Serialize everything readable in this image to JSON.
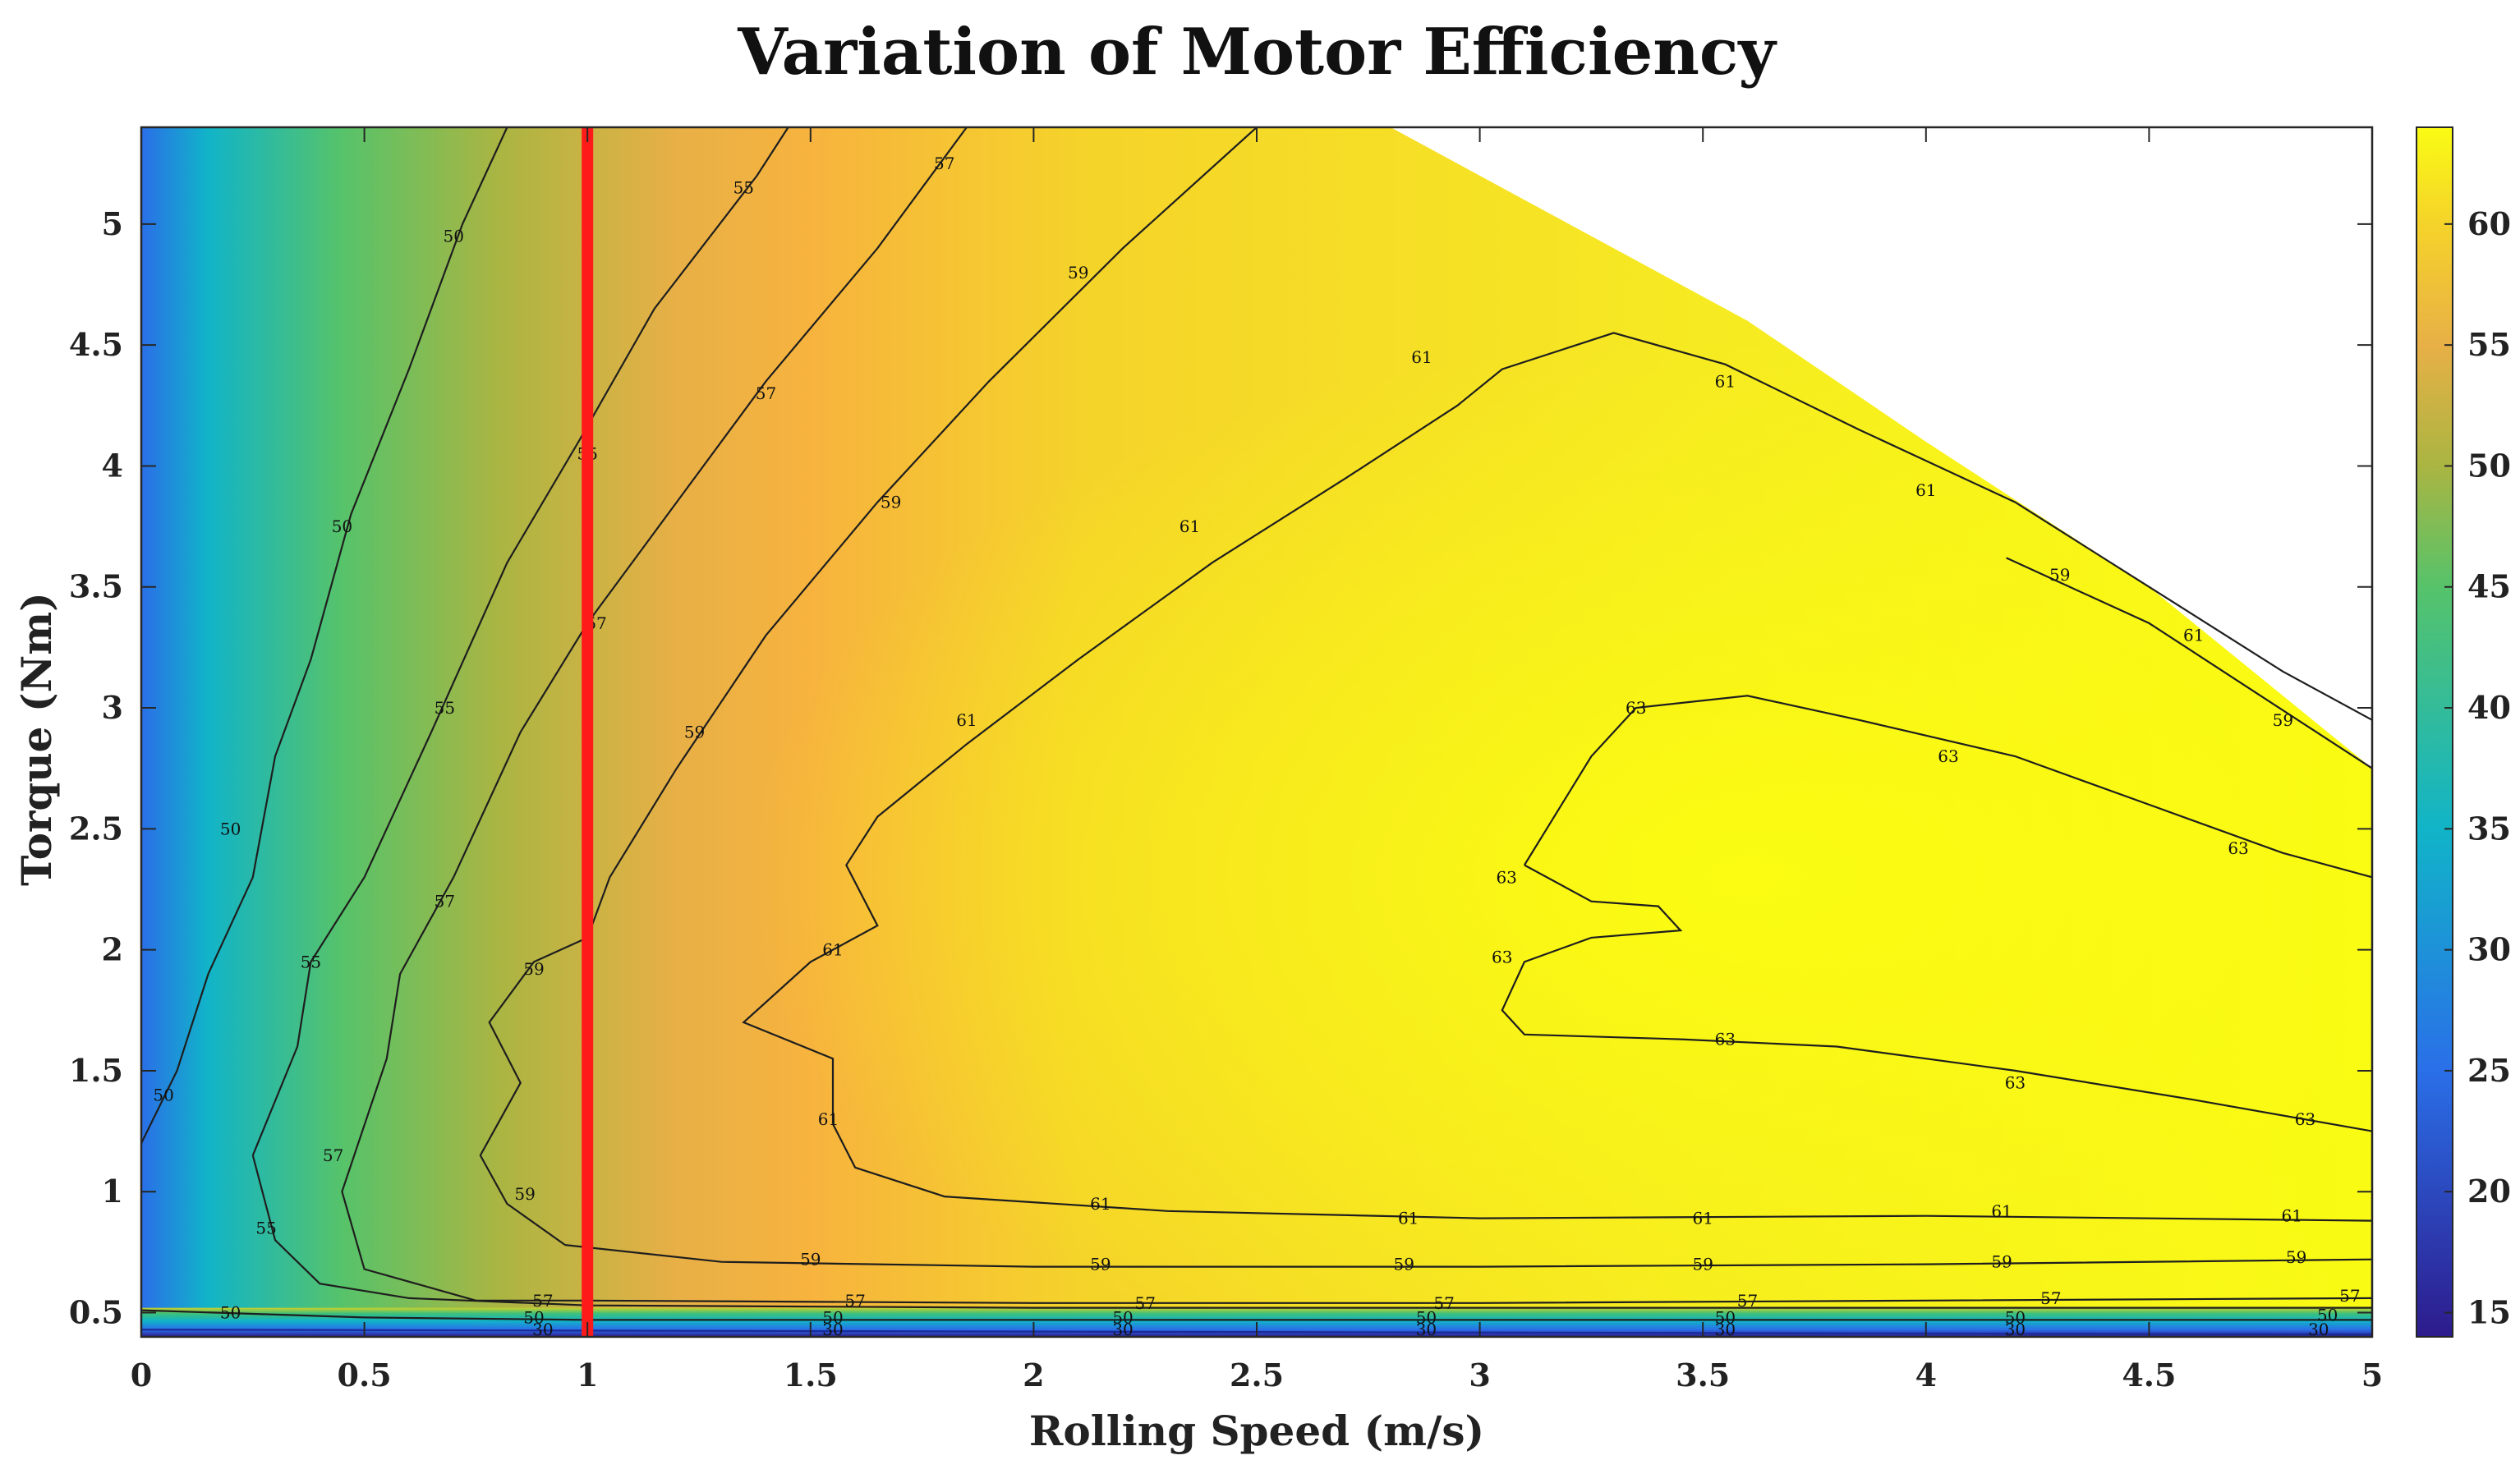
{
  "chart_data": {
    "type": "heatmap",
    "title": "Variation of Motor Efficiency",
    "xlabel": "Rolling Speed  (m/s)",
    "ylabel": "Torque  (Nm)",
    "xlim": [
      0,
      5
    ],
    "ylim": [
      0.4,
      5.4
    ],
    "xticks": [
      "0",
      "0.5",
      "1",
      "1.5",
      "2",
      "2.5",
      "3",
      "3.5",
      "4",
      "4.5",
      "5"
    ],
    "yticks": [
      "0.5",
      "1",
      "1.5",
      "2",
      "2.5",
      "3",
      "3.5",
      "4",
      "4.5",
      "5"
    ],
    "colorbar": {
      "range": [
        14,
        64
      ],
      "ticks": [
        "15",
        "20",
        "25",
        "30",
        "35",
        "40",
        "45",
        "50",
        "55",
        "60"
      ]
    },
    "colors": {
      "c14": "#2d1b8c",
      "c25": "#2a6fe8",
      "c35": "#11b4c8",
      "c45": "#56c36a",
      "c50": "#aab542",
      "c55": "#e8b046",
      "c57": "#f7b33e",
      "c60": "#f5d32a",
      "c64": "#f9fb14",
      "marker": "#ff1a1a"
    },
    "marker_line": {
      "x": 1
    },
    "valid_region_top": [
      [
        0,
        5.4
      ],
      [
        2.8,
        5.4
      ],
      [
        3.15,
        5.05
      ],
      [
        3.6,
        4.6
      ],
      [
        4.0,
        4.1
      ],
      [
        4.5,
        3.5
      ],
      [
        5.0,
        2.75
      ]
    ],
    "contours": [
      {
        "level": "30",
        "points": [
          [
            0,
            0.43
          ],
          [
            5,
            0.41
          ]
        ],
        "labels": [
          [
            0.9,
            0.43
          ],
          [
            1.55,
            0.43
          ],
          [
            2.2,
            0.43
          ],
          [
            2.88,
            0.43
          ],
          [
            3.55,
            0.43
          ],
          [
            4.2,
            0.43
          ],
          [
            4.88,
            0.43
          ]
        ]
      },
      {
        "level": "50",
        "points": [
          [
            0,
            0.51
          ],
          [
            0.5,
            0.48
          ],
          [
            1,
            0.47
          ],
          [
            5,
            0.47
          ]
        ],
        "labels": [
          [
            0.2,
            0.5
          ],
          [
            0.88,
            0.48
          ],
          [
            1.55,
            0.48
          ],
          [
            2.2,
            0.48
          ],
          [
            2.88,
            0.48
          ],
          [
            3.55,
            0.48
          ],
          [
            4.2,
            0.48
          ],
          [
            4.9,
            0.49
          ]
        ]
      },
      {
        "level": "50",
        "points": [
          [
            0,
            1.2
          ],
          [
            0.08,
            1.5
          ],
          [
            0.15,
            1.9
          ],
          [
            0.25,
            2.3
          ],
          [
            0.3,
            2.8
          ],
          [
            0.38,
            3.2
          ],
          [
            0.47,
            3.8
          ],
          [
            0.6,
            4.4
          ],
          [
            0.72,
            5.0
          ],
          [
            0.82,
            5.4
          ]
        ],
        "labels": [
          [
            0.05,
            1.4
          ],
          [
            0.2,
            2.5
          ],
          [
            0.45,
            3.75
          ],
          [
            0.7,
            4.95
          ]
        ]
      },
      {
        "level": "55",
        "points": [
          [
            0.25,
            1.15
          ],
          [
            0.3,
            0.8
          ],
          [
            0.4,
            0.62
          ],
          [
            0.6,
            0.56
          ],
          [
            1,
            0.53
          ],
          [
            2,
            0.52
          ],
          [
            3,
            0.52
          ],
          [
            5,
            0.52
          ]
        ],
        "labels": [
          [
            0.28,
            0.85
          ]
        ]
      },
      {
        "level": "55",
        "points": [
          [
            0.25,
            1.15
          ],
          [
            0.35,
            1.6
          ],
          [
            0.38,
            1.95
          ],
          [
            0.5,
            2.3
          ],
          [
            0.65,
            2.9
          ],
          [
            0.82,
            3.6
          ],
          [
            0.98,
            4.1
          ],
          [
            1.15,
            4.65
          ],
          [
            1.38,
            5.2
          ],
          [
            1.45,
            5.4
          ]
        ],
        "labels": [
          [
            0.38,
            1.95
          ],
          [
            0.68,
            3.0
          ],
          [
            1.0,
            4.05
          ],
          [
            1.35,
            5.15
          ]
        ]
      },
      {
        "level": "57",
        "points": [
          [
            0.75,
            0.55
          ],
          [
            0.5,
            0.68
          ],
          [
            0.45,
            1.0
          ],
          [
            0.55,
            1.55
          ],
          [
            0.58,
            1.9
          ],
          [
            0.7,
            2.3
          ],
          [
            0.85,
            2.9
          ],
          [
            1.0,
            3.35
          ],
          [
            1.2,
            3.85
          ],
          [
            1.4,
            4.35
          ],
          [
            1.65,
            4.9
          ],
          [
            1.85,
            5.4
          ]
        ],
        "labels": [
          [
            0.43,
            1.15
          ],
          [
            0.68,
            2.2
          ],
          [
            1.02,
            3.35
          ],
          [
            1.4,
            4.3
          ],
          [
            1.8,
            5.25
          ]
        ]
      },
      {
        "level": "57",
        "points": [
          [
            0.75,
            0.55
          ],
          [
            1,
            0.55
          ],
          [
            2,
            0.54
          ],
          [
            3,
            0.54
          ],
          [
            4,
            0.55
          ],
          [
            5,
            0.56
          ]
        ],
        "labels": [
          [
            0.9,
            0.55
          ],
          [
            1.6,
            0.55
          ],
          [
            2.25,
            0.54
          ],
          [
            2.92,
            0.54
          ],
          [
            3.6,
            0.55
          ],
          [
            4.28,
            0.56
          ],
          [
            4.95,
            0.57
          ]
        ]
      },
      {
        "level": "59",
        "points": [
          [
            0.95,
            0.78
          ],
          [
            0.82,
            0.95
          ],
          [
            0.76,
            1.15
          ],
          [
            0.85,
            1.45
          ],
          [
            0.78,
            1.7
          ],
          [
            0.88,
            1.95
          ],
          [
            1.0,
            2.05
          ],
          [
            1.05,
            2.3
          ],
          [
            1.2,
            2.75
          ],
          [
            1.4,
            3.3
          ],
          [
            1.65,
            3.85
          ],
          [
            1.9,
            4.35
          ],
          [
            2.2,
            4.9
          ],
          [
            2.5,
            5.4
          ]
        ],
        "labels": [
          [
            0.86,
            0.99
          ],
          [
            0.88,
            1.92
          ],
          [
            1.24,
            2.9
          ],
          [
            1.68,
            3.85
          ],
          [
            2.1,
            4.8
          ]
        ]
      },
      {
        "level": "59",
        "points": [
          [
            0.95,
            0.78
          ],
          [
            1.3,
            0.71
          ],
          [
            2,
            0.69
          ],
          [
            3,
            0.69
          ],
          [
            4,
            0.7
          ],
          [
            5,
            0.72
          ]
        ],
        "labels": [
          [
            1.5,
            0.72
          ],
          [
            2.15,
            0.7
          ],
          [
            2.83,
            0.7
          ],
          [
            3.5,
            0.7
          ],
          [
            4.17,
            0.71
          ],
          [
            4.83,
            0.73
          ]
        ]
      },
      {
        "level": "59",
        "points": [
          [
            4.18,
            3.62
          ],
          [
            4.5,
            3.35
          ],
          [
            4.75,
            3.05
          ],
          [
            5,
            2.75
          ]
        ],
        "labels": [
          [
            4.3,
            3.55
          ],
          [
            4.8,
            2.95
          ]
        ]
      },
      {
        "level": "61",
        "points": [
          [
            1.55,
            1.28
          ],
          [
            1.6,
            1.1
          ],
          [
            1.8,
            0.98
          ],
          [
            2.3,
            0.92
          ],
          [
            3,
            0.89
          ],
          [
            4,
            0.9
          ],
          [
            5,
            0.88
          ]
        ],
        "labels": [
          [
            2.15,
            0.95
          ],
          [
            2.84,
            0.89
          ],
          [
            3.5,
            0.89
          ],
          [
            4.17,
            0.92
          ],
          [
            4.82,
            0.9
          ]
        ]
      },
      {
        "level": "61",
        "points": [
          [
            1.55,
            1.28
          ],
          [
            1.55,
            1.55
          ],
          [
            1.35,
            1.7
          ],
          [
            1.5,
            1.95
          ],
          [
            1.65,
            2.1
          ],
          [
            1.58,
            2.35
          ],
          [
            1.65,
            2.55
          ],
          [
            1.85,
            2.85
          ],
          [
            2.1,
            3.2
          ],
          [
            2.4,
            3.6
          ],
          [
            2.7,
            3.95
          ],
          [
            2.95,
            4.25
          ],
          [
            3.05,
            4.4
          ],
          [
            3.3,
            4.55
          ],
          [
            3.55,
            4.42
          ],
          [
            3.85,
            4.15
          ],
          [
            4.2,
            3.85
          ],
          [
            4.5,
            3.5
          ],
          [
            4.8,
            3.15
          ],
          [
            5,
            2.95
          ]
        ],
        "labels": [
          [
            1.54,
            1.3
          ],
          [
            1.55,
            2.0
          ],
          [
            1.85,
            2.95
          ],
          [
            2.35,
            3.75
          ],
          [
            2.87,
            4.45
          ],
          [
            3.55,
            4.35
          ],
          [
            4.0,
            3.9
          ],
          [
            4.6,
            3.3
          ]
        ]
      },
      {
        "level": "63",
        "points": [
          [
            3.1,
            2.35
          ],
          [
            3.25,
            2.8
          ],
          [
            3.35,
            3.0
          ],
          [
            3.6,
            3.05
          ],
          [
            3.85,
            2.95
          ],
          [
            4.2,
            2.8
          ],
          [
            4.5,
            2.6
          ],
          [
            4.8,
            2.4
          ],
          [
            5,
            2.3
          ]
        ],
        "labels": [
          [
            3.35,
            3.0
          ],
          [
            4.05,
            2.8
          ],
          [
            4.7,
            2.42
          ]
        ]
      },
      {
        "level": "63",
        "points": [
          [
            3.1,
            2.35
          ],
          [
            3.25,
            2.2
          ],
          [
            3.4,
            2.18
          ],
          [
            3.45,
            2.08
          ],
          [
            3.25,
            2.05
          ],
          [
            3.1,
            1.95
          ],
          [
            3.05,
            1.75
          ],
          [
            3.1,
            1.65
          ],
          [
            3.45,
            1.63
          ],
          [
            3.8,
            1.6
          ],
          [
            4.2,
            1.5
          ],
          [
            4.6,
            1.38
          ],
          [
            5,
            1.25
          ]
        ],
        "labels": [
          [
            3.06,
            2.3
          ],
          [
            3.05,
            1.97
          ],
          [
            3.55,
            1.63
          ],
          [
            4.2,
            1.45
          ],
          [
            4.85,
            1.3
          ]
        ]
      }
    ]
  }
}
